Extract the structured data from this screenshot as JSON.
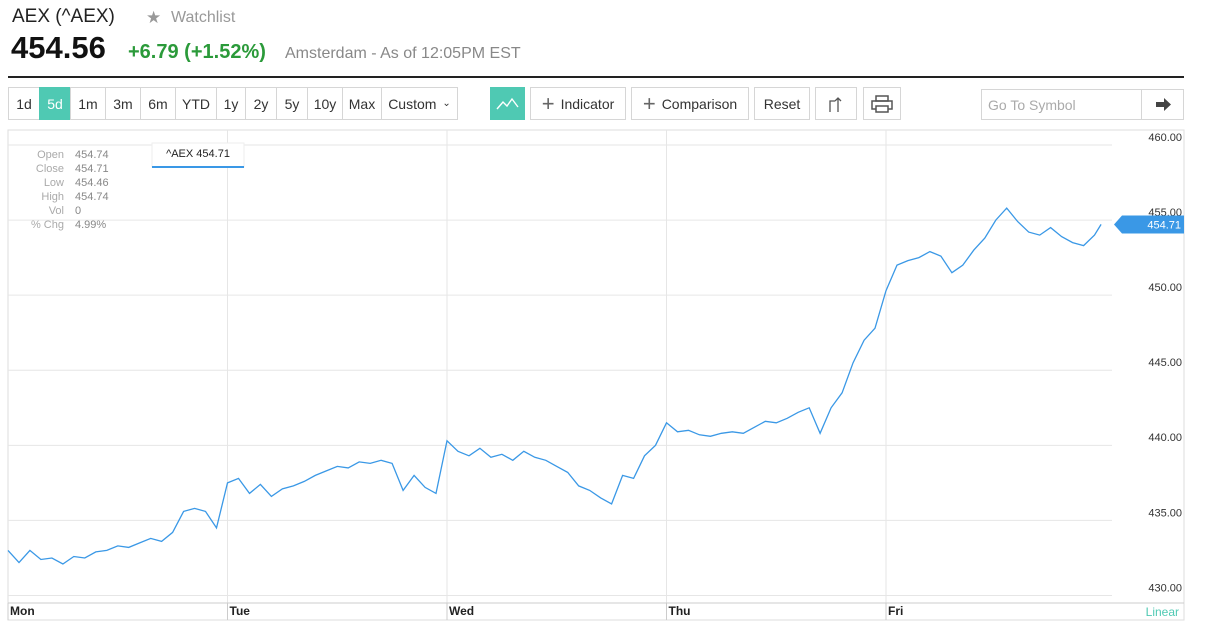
{
  "header": {
    "title": "AEX (^AEX)",
    "watchlist": "Watchlist",
    "price": "454.56",
    "change": "+6.79",
    "change_pct": "(+1.52%)",
    "market": "Amsterdam - As of 12:05PM EST"
  },
  "toolbar": {
    "ranges": [
      "1d",
      "5d",
      "1m",
      "3m",
      "6m",
      "YTD",
      "1y",
      "2y",
      "5y",
      "10y",
      "Max"
    ],
    "selected": "5d",
    "custom": "Custom",
    "indicator": "Indicator",
    "comparison": "Comparison",
    "reset": "Reset",
    "search_placeholder": "Go To Symbol"
  },
  "info_panel": {
    "labels": [
      "Open",
      "Close",
      "Low",
      "High",
      "Vol",
      "% Chg"
    ],
    "values": [
      "454.74",
      "454.71",
      "454.46",
      "454.74",
      "0",
      "4.99%"
    ],
    "tooltip": "^AEX 454.71"
  },
  "chart_data": {
    "type": "line",
    "scale_label": "Linear",
    "x": [
      0,
      0.05,
      0.1,
      0.15,
      0.2,
      0.25,
      0.3,
      0.35,
      0.4,
      0.45,
      0.5,
      0.55,
      0.6,
      0.65,
      0.7,
      0.75,
      0.8,
      0.85,
      0.9,
      0.95,
      1,
      1.05,
      1.1,
      1.15,
      1.2,
      1.25,
      1.3,
      1.35,
      1.4,
      1.45,
      1.5,
      1.55,
      1.6,
      1.65,
      1.7,
      1.75,
      1.8,
      1.85,
      1.9,
      1.95,
      2,
      2.05,
      2.1,
      2.15,
      2.2,
      2.25,
      2.3,
      2.35,
      2.4,
      2.45,
      2.5,
      2.55,
      2.6,
      2.65,
      2.7,
      2.75,
      2.8,
      2.85,
      2.9,
      2.95,
      3,
      3.05,
      3.1,
      3.15,
      3.2,
      3.25,
      3.3,
      3.35,
      3.4,
      3.45,
      3.5,
      3.55,
      3.6,
      3.65,
      3.7,
      3.75,
      3.8,
      3.85,
      3.9,
      3.95,
      4,
      4.05,
      4.1,
      4.15,
      4.2,
      4.25,
      4.3,
      4.35,
      4.4,
      4.45,
      4.5,
      4.55,
      4.6,
      4.65,
      4.7,
      4.75,
      4.8,
      4.85,
      4.9,
      4.95,
      4.98
    ],
    "series": [
      {
        "name": "^AEX",
        "color": "#3a98e6",
        "values": [
          433.0,
          432.2,
          433.0,
          432.4,
          432.5,
          432.1,
          432.6,
          432.5,
          432.9,
          433.0,
          433.3,
          433.2,
          433.5,
          433.8,
          433.6,
          434.2,
          435.6,
          435.8,
          435.6,
          434.5,
          437.5,
          437.8,
          436.8,
          437.4,
          436.6,
          437.1,
          437.3,
          437.6,
          438.0,
          438.3,
          438.6,
          438.5,
          438.9,
          438.8,
          439.0,
          438.8,
          437.0,
          438.0,
          437.2,
          436.8,
          440.3,
          439.6,
          439.3,
          439.8,
          439.2,
          439.4,
          439.0,
          439.6,
          439.2,
          439.0,
          438.6,
          438.2,
          437.3,
          437.0,
          436.5,
          436.1,
          438.0,
          437.8,
          439.3,
          440.0,
          441.5,
          440.9,
          441.0,
          440.7,
          440.6,
          440.8,
          440.9,
          440.8,
          441.2,
          441.6,
          441.5,
          441.8,
          442.2,
          442.5,
          440.8,
          442.5,
          443.5,
          445.5,
          447.0,
          447.8,
          450.3,
          452.0,
          452.3,
          452.5,
          452.9,
          452.6,
          451.5,
          452.0,
          453.0,
          453.8,
          455.0,
          455.8,
          454.9,
          454.2,
          454.0,
          454.5,
          453.9,
          453.5,
          453.3,
          454.0,
          454.71
        ]
      }
    ],
    "xlim": [
      0,
      5
    ],
    "xticks": [
      {
        "value": 0,
        "label": "Mon"
      },
      {
        "value": 1,
        "label": "Tue"
      },
      {
        "value": 2,
        "label": "Wed"
      },
      {
        "value": 3,
        "label": "Thu"
      },
      {
        "value": 4,
        "label": "Fri"
      }
    ],
    "ylim": [
      429.5,
      461
    ],
    "yticks": [
      {
        "value": 430,
        "label": "430.00"
      },
      {
        "value": 435,
        "label": "435.00"
      },
      {
        "value": 440,
        "label": "440.00"
      },
      {
        "value": 445,
        "label": "445.00"
      },
      {
        "value": 450,
        "label": "450.00"
      },
      {
        "value": 455,
        "label": "455.00"
      },
      {
        "value": 460,
        "label": "460.00"
      }
    ],
    "grid": true
  }
}
